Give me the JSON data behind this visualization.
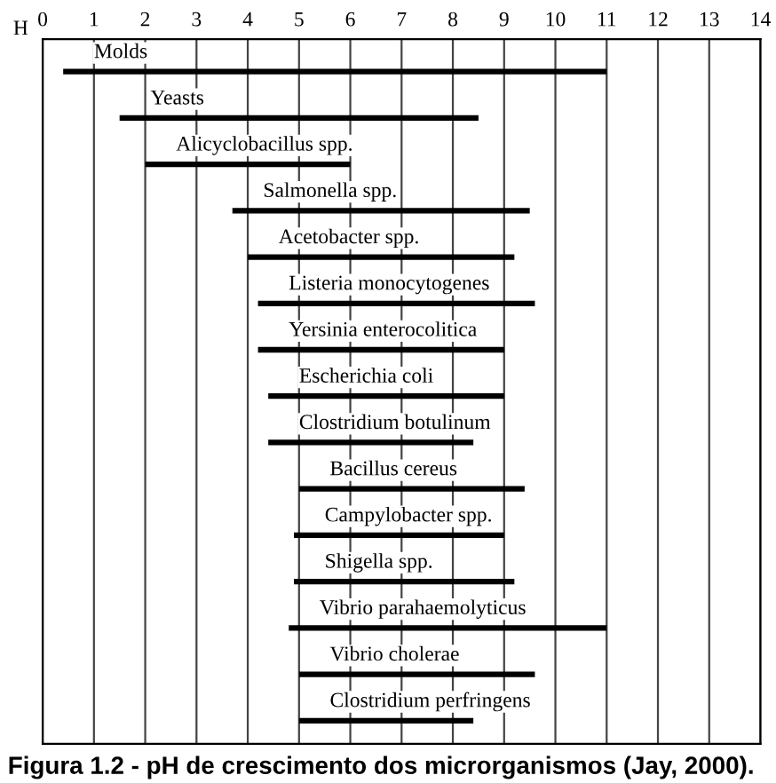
{
  "chart_data": {
    "type": "bar",
    "orientation": "horizontal",
    "title": "Figura 1.2 - pH de crescimento dos microrganismos (Jay, 2000).",
    "xlabel": "H",
    "categories": [
      "Molds",
      "Yeasts",
      "Alicyclobacillus spp.",
      "Salmonella spp.",
      "Acetobacter spp.",
      "Listeria monocytogenes",
      "Yersinia enterocolitica",
      "Escherichia coli",
      "Clostridium botulinum",
      "Bacillus cereus",
      "Campylobacter spp.",
      "Shigella spp.",
      "Vibrio parahaemolyticus",
      "Vibrio cholerae",
      "Clostridium perfringens"
    ],
    "base": [
      0.4,
      1.5,
      2.0,
      3.7,
      4.0,
      4.2,
      4.2,
      4.4,
      4.4,
      5.0,
      4.9,
      4.9,
      4.8,
      5.0,
      5.0
    ],
    "values": [
      10.6,
      7.0,
      4.0,
      5.8,
      5.2,
      5.4,
      4.8,
      4.6,
      4.0,
      4.4,
      4.1,
      4.3,
      6.2,
      4.6,
      3.4
    ],
    "color": "#000000",
    "xlim": [
      0,
      14
    ],
    "xticks": [
      0,
      1,
      2,
      3,
      4,
      5,
      6,
      7,
      8,
      9,
      10,
      11,
      12,
      13,
      14
    ],
    "grid": "x",
    "tick_labels": "x",
    "legend": false
  }
}
